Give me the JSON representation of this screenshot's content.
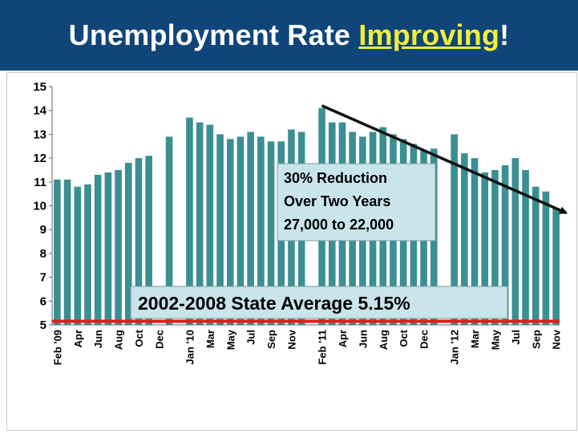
{
  "slide": {
    "title_main": "Unemployment Rate ",
    "title_highlight": "Improving",
    "title_end": "!",
    "title_color": "#10457a",
    "highlight_color": "#f2ee3a"
  },
  "chart_data": {
    "type": "bar",
    "ylim": [
      5,
      15
    ],
    "yticks": [
      5,
      6,
      7,
      8,
      9,
      10,
      11,
      12,
      13,
      14,
      15
    ],
    "bar_color": "#3a8f91",
    "slots": 60,
    "values": [
      11.1,
      11.1,
      10.8,
      10.9,
      11.3,
      11.4,
      11.5,
      11.8,
      12.0,
      12.1,
      null,
      12.9,
      null,
      13.7,
      13.5,
      13.4,
      13.0,
      12.8,
      12.9,
      13.1,
      12.9,
      12.7,
      12.7,
      13.2,
      13.1,
      null,
      14.1,
      13.5,
      13.5,
      13.1,
      12.9,
      13.1,
      13.3,
      13.0,
      12.8,
      12.6,
      12.3,
      12.4,
      null,
      13.0,
      12.2,
      12.0,
      11.4,
      11.5,
      11.7,
      12.0,
      11.5,
      10.8,
      10.6,
      9.9
    ],
    "xtick_labels": [
      {
        "label": "Feb '09",
        "slot": 0
      },
      {
        "label": "Apr",
        "slot": 2
      },
      {
        "label": "Jun",
        "slot": 4
      },
      {
        "label": "Aug",
        "slot": 6
      },
      {
        "label": "Oct",
        "slot": 8
      },
      {
        "label": "Dec",
        "slot": 10
      },
      {
        "label": "Jan '10",
        "slot": 13
      },
      {
        "label": "Mar",
        "slot": 15
      },
      {
        "label": "May",
        "slot": 17
      },
      {
        "label": "Jul",
        "slot": 19
      },
      {
        "label": "Sep",
        "slot": 21
      },
      {
        "label": "Nov",
        "slot": 23
      },
      {
        "label": "Feb '11",
        "slot": 26
      },
      {
        "label": "Apr",
        "slot": 28
      },
      {
        "label": "Jun",
        "slot": 30
      },
      {
        "label": "Aug",
        "slot": 32
      },
      {
        "label": "Oct",
        "slot": 34
      },
      {
        "label": "Dec",
        "slot": 36
      },
      {
        "label": "Jan '12",
        "slot": 39
      },
      {
        "label": "Mar",
        "slot": 41
      },
      {
        "label": "May",
        "slot": 43
      },
      {
        "label": "Jul",
        "slot": 45
      },
      {
        "label": "Sep",
        "slot": 47
      },
      {
        "label": "Nov",
        "slot": 49
      }
    ],
    "reference_line": {
      "value": 5.15,
      "label": "2002-2008  State Average  5.15%",
      "color": "#e21b1b"
    },
    "trend_arrow": {
      "from": {
        "slot": 26,
        "value": 14.2
      },
      "to": {
        "slot": 50,
        "value": 9.7
      }
    },
    "annotation": [
      "30% Reduction",
      "Over Two Years",
      "27,000 to 22,000"
    ],
    "annotation_fill": "#c9e4ea"
  }
}
